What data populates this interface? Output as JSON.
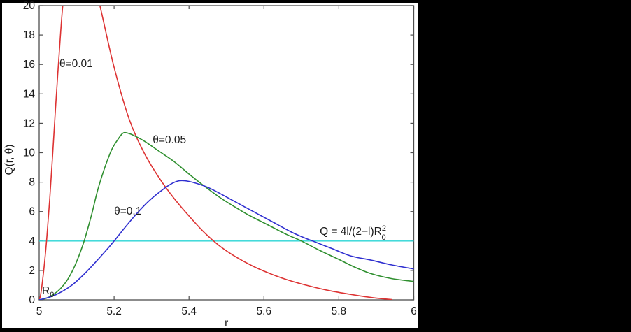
{
  "figure": {
    "background": "#000000",
    "panel_background": "#ffffff",
    "axis_color": "#4f4f4f",
    "text_color": "#1a1a1a"
  },
  "chart_data": {
    "type": "line",
    "title": "",
    "xlabel": "r",
    "ylabel": "Q(r, θ)",
    "xlim": [
      5,
      6
    ],
    "ylim": [
      0,
      20
    ],
    "xticks": [
      5,
      5.2,
      5.4,
      5.6,
      5.8,
      6
    ],
    "xtick_labels": [
      "5",
      "5.2",
      "5.4",
      "5.6",
      "5.8",
      "6"
    ],
    "yticks": [
      0,
      2,
      4,
      6,
      8,
      10,
      12,
      14,
      16,
      18,
      20
    ],
    "ytick_labels": [
      "0",
      "2",
      "4",
      "6",
      "8",
      "10",
      "12",
      "14",
      "16",
      "18",
      "20"
    ],
    "grid": false,
    "box": true,
    "legend_position": "none",
    "series": [
      {
        "name": "theta-0.01",
        "label": "θ=0.01",
        "color": "#dd3333",
        "peak_note": "peak off-scale (~25.5 at r~5.10)",
        "points": [
          [
            5.0,
            0
          ],
          [
            5.004,
            0.35
          ],
          [
            5.009,
            1.3
          ],
          [
            5.015,
            2.7
          ],
          [
            5.021,
            4.4
          ],
          [
            5.028,
            6.8
          ],
          [
            5.036,
            9.9
          ],
          [
            5.044,
            13.2
          ],
          [
            5.053,
            16.6
          ],
          [
            5.063,
            20.0
          ],
          [
            5.08,
            24.0
          ],
          [
            5.1,
            25.6
          ],
          [
            5.12,
            24.3
          ],
          [
            5.142,
            21.8
          ],
          [
            5.162,
            20.0
          ],
          [
            5.2,
            15.8
          ],
          [
            5.24,
            12.3
          ],
          [
            5.28,
            10.0
          ],
          [
            5.32,
            8.3
          ],
          [
            5.36,
            6.9
          ],
          [
            5.4,
            5.7
          ],
          [
            5.44,
            4.6
          ],
          [
            5.48,
            3.7
          ],
          [
            5.52,
            3.0
          ],
          [
            5.57,
            2.3
          ],
          [
            5.62,
            1.75
          ],
          [
            5.67,
            1.3
          ],
          [
            5.72,
            0.95
          ],
          [
            5.77,
            0.65
          ],
          [
            5.82,
            0.42
          ],
          [
            5.87,
            0.22
          ],
          [
            5.91,
            0.09
          ],
          [
            5.94,
            0.03
          ]
        ]
      },
      {
        "name": "theta-0.05",
        "label": "θ=0.05",
        "color": "#2f8f2f",
        "peak_note": "peak ~11.4 at r~5.22",
        "points": [
          [
            5.0,
            0
          ],
          [
            5.02,
            0.12
          ],
          [
            5.04,
            0.4
          ],
          [
            5.06,
            0.85
          ],
          [
            5.08,
            1.55
          ],
          [
            5.1,
            2.6
          ],
          [
            5.12,
            4.0
          ],
          [
            5.14,
            5.8
          ],
          [
            5.16,
            7.8
          ],
          [
            5.19,
            10.0
          ],
          [
            5.21,
            10.9
          ],
          [
            5.225,
            11.35
          ],
          [
            5.24,
            11.3
          ],
          [
            5.25,
            11.2
          ],
          [
            5.28,
            10.8
          ],
          [
            5.32,
            10.1
          ],
          [
            5.36,
            9.4
          ],
          [
            5.4,
            8.55
          ],
          [
            5.44,
            7.75
          ],
          [
            5.48,
            7.0
          ],
          [
            5.52,
            6.35
          ],
          [
            5.56,
            5.75
          ],
          [
            5.61,
            5.1
          ],
          [
            5.66,
            4.45
          ],
          [
            5.7,
            4.0
          ],
          [
            5.75,
            3.35
          ],
          [
            5.8,
            2.75
          ],
          [
            5.84,
            2.25
          ],
          [
            5.886,
            1.78
          ],
          [
            5.94,
            1.45
          ],
          [
            6.0,
            1.25
          ]
        ]
      },
      {
        "name": "theta-0.1",
        "label": "θ=0.1",
        "color": "#2f2fd0",
        "peak_note": "peak ~8.1 at r~5.37",
        "points": [
          [
            5.0,
            0
          ],
          [
            5.03,
            0.2
          ],
          [
            5.06,
            0.55
          ],
          [
            5.09,
            1.05
          ],
          [
            5.12,
            1.75
          ],
          [
            5.15,
            2.55
          ],
          [
            5.18,
            3.4
          ],
          [
            5.2,
            4.0
          ],
          [
            5.23,
            4.95
          ],
          [
            5.26,
            5.85
          ],
          [
            5.29,
            6.65
          ],
          [
            5.32,
            7.3
          ],
          [
            5.35,
            7.85
          ],
          [
            5.375,
            8.1
          ],
          [
            5.4,
            8.05
          ],
          [
            5.44,
            7.75
          ],
          [
            5.47,
            7.4
          ],
          [
            5.51,
            6.85
          ],
          [
            5.55,
            6.3
          ],
          [
            5.59,
            5.75
          ],
          [
            5.63,
            5.2
          ],
          [
            5.67,
            4.65
          ],
          [
            5.7,
            4.3
          ],
          [
            5.73,
            4.0
          ],
          [
            5.78,
            3.5
          ],
          [
            5.83,
            3.0
          ],
          [
            5.886,
            2.7
          ],
          [
            5.94,
            2.38
          ],
          [
            6.0,
            2.1
          ]
        ]
      },
      {
        "name": "threshold-line",
        "label": "Q = 4l/(2−l)R0^2",
        "color": "#2ad4d4",
        "points": [
          [
            5.0,
            4
          ],
          [
            6.0,
            4
          ]
        ]
      }
    ],
    "annotations": [
      {
        "id": "theta-001-label",
        "text": "θ=0.01",
        "r": 5.054,
        "q": 15.82
      },
      {
        "id": "theta-005-label",
        "text": "θ=0.05",
        "r": 5.303,
        "q": 10.64
      },
      {
        "id": "theta-01-label",
        "text": "θ=0.1",
        "r": 5.2,
        "q": 5.8
      },
      {
        "id": "q-formula-label",
        "prefix": "Q = 4l/(2−l)R",
        "sup": "2",
        "sub": "0",
        "r": 5.749,
        "q": 4.42
      },
      {
        "id": "r0-origin-label",
        "prefix": "R",
        "sub": "0",
        "r": 5.0075,
        "q": 0.38
      }
    ]
  }
}
